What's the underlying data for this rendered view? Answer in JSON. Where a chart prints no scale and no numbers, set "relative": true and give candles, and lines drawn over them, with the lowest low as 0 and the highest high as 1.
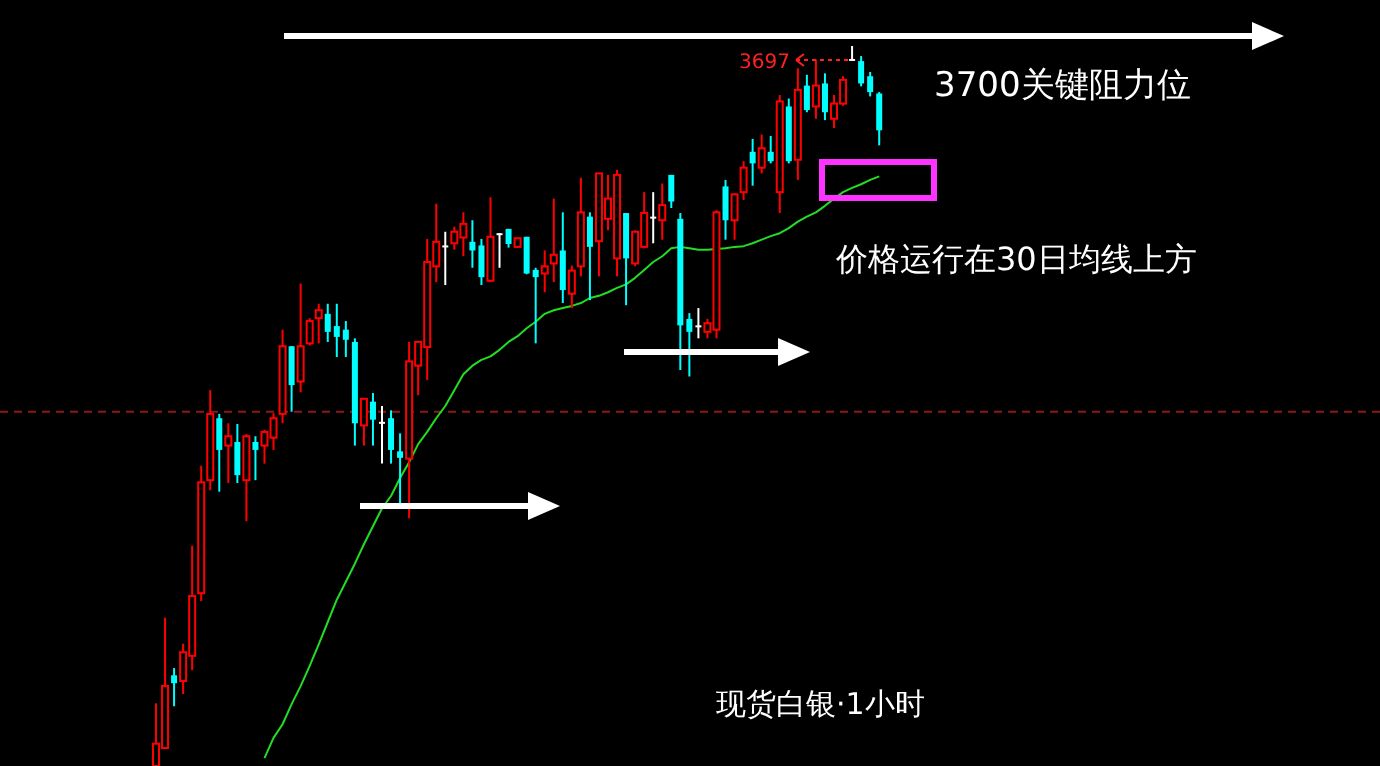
{
  "chart_data": {
    "type": "candlestick",
    "relative": true,
    "categories": [
      null,
      null,
      null,
      null,
      null,
      null,
      null,
      null,
      null,
      null,
      null,
      null,
      null,
      null,
      null,
      null,
      null,
      null,
      null,
      null,
      null,
      null,
      null,
      null,
      null,
      null,
      null,
      null,
      null,
      null,
      null,
      null,
      null,
      null,
      null,
      null,
      null,
      null,
      null,
      null,
      null,
      null,
      null,
      null,
      null,
      null,
      null,
      null,
      null,
      null,
      null,
      null,
      null,
      null,
      null,
      null,
      null,
      null,
      null,
      null,
      null,
      null,
      null,
      null,
      null,
      null,
      null,
      null,
      null,
      null,
      null,
      null,
      null,
      null,
      null,
      null,
      null,
      null,
      null,
      null,
      null
    ],
    "ohlc": [
      [
        0,
        0.087,
        0,
        0.031
      ],
      [
        0.025,
        0.206,
        0.025,
        0.111
      ],
      [
        0.126,
        0.136,
        0.083,
        0.115
      ],
      [
        0.118,
        0.17,
        0.1,
        0.158
      ],
      [
        0.153,
        0.306,
        0.133,
        0.236
      ],
      [
        0.24,
        0.417,
        0.229,
        0.394
      ],
      [
        0.397,
        0.522,
        0.383,
        0.489
      ],
      [
        0.483,
        0.489,
        0.381,
        0.439
      ],
      [
        0.445,
        0.476,
        0.393,
        0.458
      ],
      [
        0.45,
        0.475,
        0.393,
        0.404
      ],
      [
        0.397,
        0.461,
        0.34,
        0.458
      ],
      [
        0.45,
        0.458,
        0.397,
        0.439
      ],
      [
        0.445,
        0.467,
        0.42,
        0.464
      ],
      [
        0.456,
        0.49,
        0.439,
        0.483
      ],
      [
        0.489,
        0.606,
        0.476,
        0.583
      ],
      [
        0.583,
        0.583,
        0.492,
        0.529
      ],
      [
        0.534,
        0.67,
        0.519,
        0.583
      ],
      [
        0.587,
        0.622,
        0.584,
        0.618
      ],
      [
        0.622,
        0.642,
        0.587,
        0.633
      ],
      [
        0.628,
        0.642,
        0.589,
        0.603
      ],
      [
        0.611,
        0.642,
        0.568,
        0.596
      ],
      [
        0.606,
        0.618,
        0.568,
        0.592
      ],
      [
        0.589,
        0.594,
        0.445,
        0.476
      ],
      [
        0.473,
        0.51,
        0.445,
        0.51
      ],
      [
        0.506,
        0.518,
        0.445,
        0.481
      ],
      [
        0.478,
        0.5,
        0.42,
        0.478
      ],
      [
        0.483,
        0.494,
        0.42,
        0.439
      ],
      [
        0.437,
        0.462,
        0.362,
        0.428
      ],
      [
        0.427,
        0.589,
        0.344,
        0.562
      ],
      [
        0.556,
        0.589,
        0.515,
        0.589
      ],
      [
        0.582,
        0.732,
        0.536,
        0.7
      ],
      [
        0.694,
        0.781,
        0.672,
        0.728
      ],
      [
        0.723,
        0.742,
        0.668,
        0.723
      ],
      [
        0.726,
        0.749,
        0.717,
        0.742
      ],
      [
        0.734,
        0.769,
        0.708,
        0.753
      ],
      [
        0.728,
        0.758,
        0.692,
        0.716
      ],
      [
        0.723,
        0.732,
        0.668,
        0.679
      ],
      [
        0.674,
        0.79,
        0.672,
        0.735
      ],
      [
        0.74,
        0.74,
        0.692,
        0.74
      ],
      [
        0.746,
        0.746,
        0.72,
        0.725
      ],
      [
        0.721,
        0.733,
        0.72,
        0.733
      ],
      [
        0.735,
        0.735,
        0.683,
        0.684
      ],
      [
        0.689,
        0.692,
        0.587,
        0.679
      ],
      [
        0.684,
        0.716,
        0.658,
        0.694
      ],
      [
        0.698,
        0.788,
        0.672,
        0.71
      ],
      [
        0.716,
        0.769,
        0.643,
        0.661
      ],
      [
        0.656,
        0.695,
        0.636,
        0.688
      ],
      [
        0.694,
        0.817,
        0.68,
        0.769
      ],
      [
        0.763,
        0.769,
        0.647,
        0.721
      ],
      [
        0.729,
        0.823,
        0.68,
        0.823
      ],
      [
        0.76,
        0.821,
        0.744,
        0.788
      ],
      [
        0.705,
        0.828,
        0.68,
        0.821
      ],
      [
        0.768,
        0.768,
        0.64,
        0.705
      ],
      [
        0.698,
        0.744,
        0.694,
        0.742
      ],
      [
        0.721,
        0.797,
        0.719,
        0.768
      ],
      [
        0.763,
        0.797,
        0.726,
        0.763
      ],
      [
        0.758,
        0.809,
        0.731,
        0.779
      ],
      [
        0.821,
        0.821,
        0.775,
        0.784
      ],
      [
        0.76,
        0.768,
        0.55,
        0.612
      ],
      [
        0.621,
        0.629,
        0.541,
        0.603
      ],
      [
        0.612,
        0.636,
        0.594,
        0.612
      ],
      [
        0.603,
        0.621,
        0.594,
        0.615
      ],
      [
        0.606,
        0.772,
        0.594,
        0.769
      ],
      [
        0.805,
        0.814,
        0.731,
        0.758
      ],
      [
        0.758,
        0.795,
        0.731,
        0.794
      ],
      [
        0.797,
        0.84,
        0.786,
        0.831
      ],
      [
        0.853,
        0.871,
        0.806,
        0.837
      ],
      [
        0.831,
        0.877,
        0.823,
        0.858
      ],
      [
        0.853,
        0.875,
        0.837,
        0.84
      ],
      [
        0.797,
        0.932,
        0.768,
        0.923
      ],
      [
        0.916,
        0.927,
        0.837,
        0.84
      ],
      [
        0.842,
        0.969,
        0.814,
        0.939
      ],
      [
        0.945,
        0.96,
        0.908,
        0.911
      ],
      [
        0.916,
        0.981,
        0.899,
        0.945
      ],
      [
        0.948,
        0.962,
        0.897,
        0.908
      ],
      [
        0.899,
        0.932,
        0.886,
        0.92
      ],
      [
        0.92,
        0.958,
        0.917,
        0.953
      ],
      [
        0.982,
        1,
        0.981,
        0.982
      ],
      [
        0.979,
        0.986,
        0.944,
        0.948
      ],
      [
        0.958,
        0.964,
        0.93,
        0.936
      ],
      [
        0.934,
        0.936,
        0.862,
        0.883
      ]
    ],
    "colors": [
      "#ff0000",
      "#ff0000",
      "#00ffff",
      "#ff0000",
      "#ff0000",
      "#ff0000",
      "#ff0000",
      "#00ffff",
      "#ff0000",
      "#00ffff",
      "#ff0000",
      "#00ffff",
      "#ff0000",
      "#ff0000",
      "#ff0000",
      "#00ffff",
      "#ff0000",
      "#ff0000",
      "#ff0000",
      "#00ffff",
      "#00ffff",
      "#00ffff",
      "#00ffff",
      "#ff0000",
      "#00ffff",
      "#ffffff",
      "#00ffff",
      "#00ffff",
      "#ff0000",
      "#ff0000",
      "#ff0000",
      "#ff0000",
      "#ffffff",
      "#ff0000",
      "#ff0000",
      "#00ffff",
      "#00ffff",
      "#ff0000",
      "#ffffff",
      "#00ffff",
      "#ff0000",
      "#00ffff",
      "#00ffff",
      "#ff0000",
      "#ff0000",
      "#00ffff",
      "#ff0000",
      "#ff0000",
      "#00ffff",
      "#ff0000",
      "#ff0000",
      "#ff0000",
      "#00ffff",
      "#ff0000",
      "#ff0000",
      "#ffffff",
      "#ff0000",
      "#00ffff",
      "#00ffff",
      "#00ffff",
      "#ffffff",
      "#ff0000",
      "#ff0000",
      "#00ffff",
      "#ff0000",
      "#ff0000",
      "#00ffff",
      "#ff0000",
      "#00ffff",
      "#ff0000",
      "#00ffff",
      "#ff0000",
      "#00ffff",
      "#ff0000",
      "#00ffff",
      "#ff0000",
      "#ff0000",
      "#ffffff",
      "#00ffff",
      "#00ffff",
      "#00ffff"
    ],
    "series": [
      {
        "type": "line",
        "color": "#22dd22",
        "values": [
          null,
          null,
          null,
          null,
          null,
          null,
          null,
          null,
          null,
          null,
          null,
          null,
          0.011,
          0.039,
          0.058,
          0.086,
          0.111,
          0.139,
          0.169,
          0.2,
          0.231,
          0.256,
          0.281,
          0.308,
          0.333,
          0.358,
          0.375,
          0.4,
          0.422,
          0.447,
          0.464,
          0.483,
          0.5,
          0.522,
          0.544,
          0.556,
          0.564,
          0.569,
          0.578,
          0.589,
          0.597,
          0.608,
          0.617,
          0.628,
          0.633,
          0.636,
          0.639,
          0.643,
          0.65,
          0.653,
          0.658,
          0.664,
          0.669,
          0.678,
          0.689,
          0.7,
          0.708,
          0.719,
          0.721,
          0.719,
          0.717,
          0.717,
          0.718,
          0.719,
          0.721,
          0.722,
          0.726,
          0.731,
          0.736,
          0.74,
          0.747,
          0.756,
          0.763,
          0.769,
          0.778,
          0.788,
          0.797,
          0.803,
          0.808,
          0.814,
          0.819
        ]
      }
    ],
    "ref_lines": [
      {
        "axis": "y",
        "value": 0.492,
        "color": "#8b1a1a",
        "line_style": "dashed"
      }
    ],
    "annotations": [
      "3697",
      "3700关键阻力位",
      "价格运行在30日均线上方",
      "现货白银·1小时"
    ]
  }
}
